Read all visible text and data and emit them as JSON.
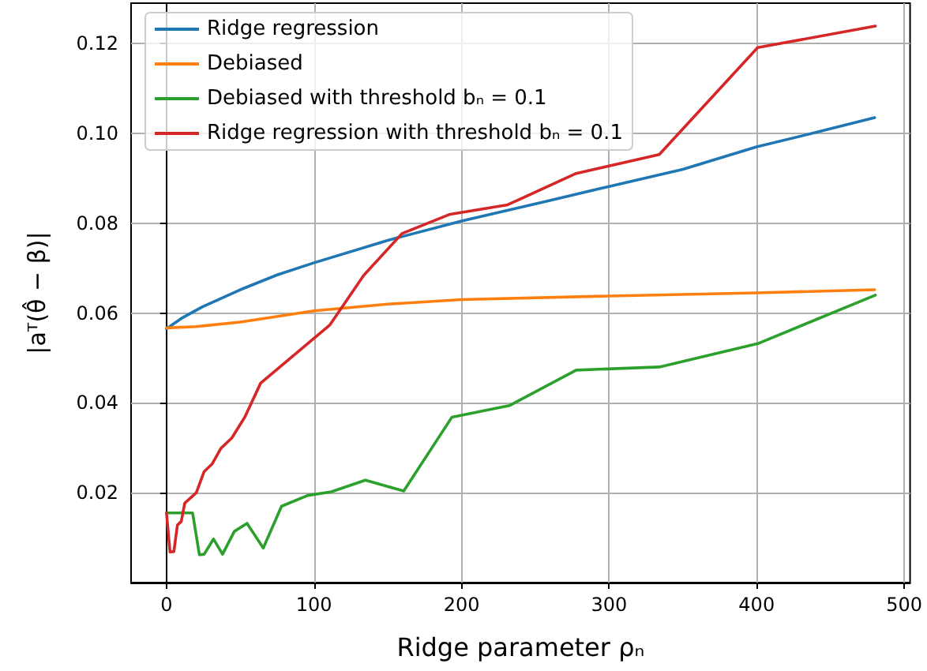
{
  "chart_data": {
    "type": "line",
    "xlabel": "Ridge parameter ρₙ",
    "ylabel": "|aᵀ(θ̂ − β)|",
    "xlim": [
      -24,
      504
    ],
    "xticks": [
      0,
      100,
      200,
      300,
      400,
      500
    ],
    "ylim": [
      0,
      0.129
    ],
    "yticks": [
      0.02,
      0.04,
      0.06,
      0.08,
      {
        "value": 0.1,
        "label": "0.10"
      },
      0.12
    ],
    "grid": true,
    "legend": "top left",
    "marker": "none",
    "line_style": "solid",
    "series": [
      {
        "name": "Ridge regression",
        "color": "#1f77b4",
        "x": [
          0,
          10,
          25,
          50,
          75,
          100,
          150,
          200,
          250,
          300,
          350,
          400,
          440,
          480
        ],
        "values": [
          0.0565,
          0.0588,
          0.0615,
          0.0652,
          0.0685,
          0.0712,
          0.0762,
          0.0805,
          0.0843,
          0.0882,
          0.092,
          0.097,
          0.1002,
          0.1035
        ]
      },
      {
        "name": "Debiased",
        "color": "#ff7f0e",
        "x": [
          0,
          20,
          50,
          100,
          150,
          200,
          300,
          400,
          480
        ],
        "values": [
          0.0567,
          0.057,
          0.058,
          0.0605,
          0.062,
          0.063,
          0.0638,
          0.0645,
          0.0652
        ]
      },
      {
        "name": "Debiased with threshold bₙ = 0.1",
        "color": "#2ca02c",
        "x": [
          0,
          17.7,
          22.3,
          25.5,
          31.9,
          38,
          46,
          54.6,
          65.6,
          78,
          95.7,
          111.7,
          134.8,
          160.8,
          193.4,
          232.4,
          277.7,
          334,
          400.7,
          480.5
        ],
        "values": [
          0.0155,
          0.0155,
          0.0062,
          0.0063,
          0.0097,
          0.0063,
          0.0114,
          0.0132,
          0.0077,
          0.017,
          0.0194,
          0.0202,
          0.0228,
          0.0204,
          0.0368,
          0.0394,
          0.0473,
          0.048,
          0.0532,
          0.064
        ]
      },
      {
        "name": "Ridge regression with threshold bₙ = 0.1",
        "color": "#d62728",
        "x": [
          0,
          2.4,
          5,
          7.4,
          10,
          12.4,
          20.2,
          25.5,
          30.9,
          36.9,
          44.3,
          53.2,
          63.8,
          110.6,
          133.7,
          159.6,
          192.2,
          231.2,
          277.7,
          334,
          400.7,
          480.5
        ],
        "values": [
          0.0155,
          0.0068,
          0.0069,
          0.0128,
          0.0136,
          0.0177,
          0.02,
          0.0247,
          0.0264,
          0.0299,
          0.0322,
          0.0369,
          0.0444,
          0.0573,
          0.0684,
          0.0777,
          0.082,
          0.0841,
          0.0911,
          0.0953,
          0.1191,
          0.1239
        ]
      }
    ]
  }
}
